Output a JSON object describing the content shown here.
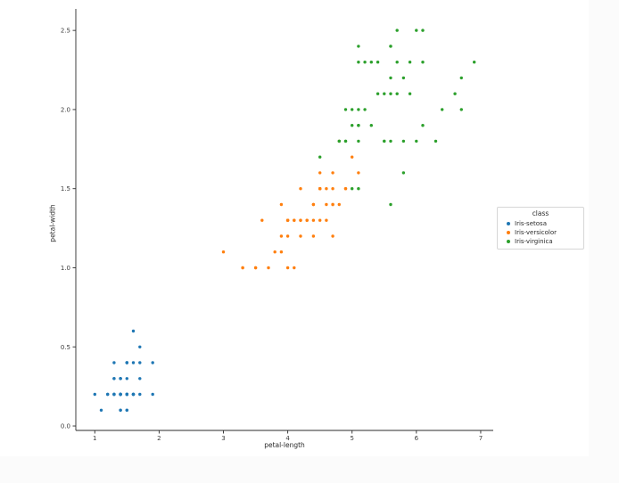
{
  "figure": {
    "background": "#ffffff",
    "page_background": "#fbfbfb",
    "axis_color": "#2b2b2b",
    "tick_label_color": "#3b3b3b"
  },
  "chart_data": {
    "type": "scatter",
    "title": "",
    "xlabel": "petal-length",
    "ylabel": "petal-width",
    "xlim": [
      0.705,
      7.195
    ],
    "ylim": [
      -0.028,
      2.636
    ],
    "xticks": [
      1,
      2,
      3,
      4,
      5,
      6,
      7
    ],
    "xtick_labels": [
      "1",
      "2",
      "3",
      "4",
      "5",
      "6",
      "7"
    ],
    "yticks": [
      0.0,
      0.5,
      1.0,
      1.5,
      2.0,
      2.5
    ],
    "ytick_labels": [
      "0.0",
      "0.5",
      "1.0",
      "1.5",
      "2.0",
      "2.5"
    ],
    "grid": false,
    "legend": {
      "title": "class",
      "position": "right-outside",
      "entries": [
        "Iris-setosa",
        "Iris-versicolor",
        "Iris-virginica"
      ]
    },
    "series": [
      {
        "name": "Iris-setosa",
        "color": "#1f77b4",
        "points": [
          [
            1.4,
            0.2
          ],
          [
            1.4,
            0.2
          ],
          [
            1.3,
            0.2
          ],
          [
            1.5,
            0.2
          ],
          [
            1.4,
            0.2
          ],
          [
            1.7,
            0.4
          ],
          [
            1.4,
            0.3
          ],
          [
            1.5,
            0.2
          ],
          [
            1.4,
            0.2
          ],
          [
            1.5,
            0.1
          ],
          [
            1.5,
            0.2
          ],
          [
            1.6,
            0.2
          ],
          [
            1.4,
            0.1
          ],
          [
            1.1,
            0.1
          ],
          [
            1.2,
            0.2
          ],
          [
            1.5,
            0.4
          ],
          [
            1.3,
            0.4
          ],
          [
            1.4,
            0.3
          ],
          [
            1.7,
            0.3
          ],
          [
            1.5,
            0.3
          ],
          [
            1.7,
            0.2
          ],
          [
            1.5,
            0.4
          ],
          [
            1.0,
            0.2
          ],
          [
            1.7,
            0.5
          ],
          [
            1.9,
            0.2
          ],
          [
            1.6,
            0.2
          ],
          [
            1.6,
            0.4
          ],
          [
            1.5,
            0.2
          ],
          [
            1.4,
            0.2
          ],
          [
            1.6,
            0.2
          ],
          [
            1.6,
            0.2
          ],
          [
            1.5,
            0.4
          ],
          [
            1.5,
            0.1
          ],
          [
            1.4,
            0.2
          ],
          [
            1.5,
            0.2
          ],
          [
            1.2,
            0.2
          ],
          [
            1.3,
            0.2
          ],
          [
            1.4,
            0.1
          ],
          [
            1.3,
            0.2
          ],
          [
            1.5,
            0.2
          ],
          [
            1.3,
            0.3
          ],
          [
            1.3,
            0.3
          ],
          [
            1.3,
            0.2
          ],
          [
            1.6,
            0.6
          ],
          [
            1.9,
            0.4
          ],
          [
            1.4,
            0.3
          ],
          [
            1.6,
            0.2
          ],
          [
            1.4,
            0.2
          ],
          [
            1.5,
            0.2
          ],
          [
            1.4,
            0.2
          ]
        ]
      },
      {
        "name": "Iris-versicolor",
        "color": "#ff7f0e",
        "points": [
          [
            4.7,
            1.4
          ],
          [
            4.5,
            1.5
          ],
          [
            4.9,
            1.5
          ],
          [
            4.0,
            1.3
          ],
          [
            4.6,
            1.5
          ],
          [
            4.5,
            1.3
          ],
          [
            4.7,
            1.6
          ],
          [
            3.3,
            1.0
          ],
          [
            4.6,
            1.3
          ],
          [
            3.9,
            1.4
          ],
          [
            3.5,
            1.0
          ],
          [
            4.2,
            1.5
          ],
          [
            4.0,
            1.0
          ],
          [
            4.7,
            1.4
          ],
          [
            3.6,
            1.3
          ],
          [
            4.4,
            1.4
          ],
          [
            4.5,
            1.5
          ],
          [
            4.1,
            1.0
          ],
          [
            4.5,
            1.5
          ],
          [
            3.9,
            1.1
          ],
          [
            4.8,
            1.8
          ],
          [
            4.0,
            1.3
          ],
          [
            4.9,
            1.5
          ],
          [
            4.7,
            1.2
          ],
          [
            4.3,
            1.3
          ],
          [
            4.4,
            1.4
          ],
          [
            4.8,
            1.4
          ],
          [
            5.0,
            1.7
          ],
          [
            4.5,
            1.5
          ],
          [
            3.5,
            1.0
          ],
          [
            3.8,
            1.1
          ],
          [
            3.7,
            1.0
          ],
          [
            3.9,
            1.2
          ],
          [
            5.1,
            1.6
          ],
          [
            4.5,
            1.5
          ],
          [
            4.5,
            1.6
          ],
          [
            4.7,
            1.5
          ],
          [
            4.4,
            1.3
          ],
          [
            4.1,
            1.3
          ],
          [
            4.0,
            1.3
          ],
          [
            4.4,
            1.2
          ],
          [
            4.6,
            1.4
          ],
          [
            4.0,
            1.2
          ],
          [
            3.3,
            1.0
          ],
          [
            4.2,
            1.3
          ],
          [
            4.2,
            1.2
          ],
          [
            4.2,
            1.3
          ],
          [
            4.3,
            1.3
          ],
          [
            3.0,
            1.1
          ],
          [
            4.1,
            1.3
          ]
        ]
      },
      {
        "name": "Iris-virginica",
        "color": "#2ca02c",
        "points": [
          [
            6.0,
            2.5
          ],
          [
            5.1,
            1.9
          ],
          [
            5.9,
            2.1
          ],
          [
            5.6,
            1.8
          ],
          [
            5.8,
            2.2
          ],
          [
            6.6,
            2.1
          ],
          [
            4.5,
            1.7
          ],
          [
            6.3,
            1.8
          ],
          [
            5.8,
            1.8
          ],
          [
            6.1,
            2.5
          ],
          [
            5.1,
            2.0
          ],
          [
            5.3,
            1.9
          ],
          [
            5.5,
            2.1
          ],
          [
            5.0,
            2.0
          ],
          [
            5.1,
            2.4
          ],
          [
            5.3,
            2.3
          ],
          [
            5.5,
            1.8
          ],
          [
            6.7,
            2.2
          ],
          [
            6.9,
            2.3
          ],
          [
            5.0,
            1.5
          ],
          [
            5.7,
            2.3
          ],
          [
            4.9,
            2.0
          ],
          [
            6.7,
            2.0
          ],
          [
            4.9,
            1.8
          ],
          [
            5.7,
            2.1
          ],
          [
            6.0,
            1.8
          ],
          [
            4.8,
            1.8
          ],
          [
            4.9,
            1.8
          ],
          [
            5.6,
            2.1
          ],
          [
            5.8,
            1.6
          ],
          [
            6.1,
            1.9
          ],
          [
            6.4,
            2.0
          ],
          [
            5.6,
            2.2
          ],
          [
            5.1,
            1.5
          ],
          [
            5.6,
            1.4
          ],
          [
            6.1,
            2.3
          ],
          [
            5.6,
            2.4
          ],
          [
            5.5,
            1.8
          ],
          [
            4.8,
            1.8
          ],
          [
            5.4,
            2.1
          ],
          [
            5.6,
            2.4
          ],
          [
            5.1,
            2.3
          ],
          [
            5.1,
            1.9
          ],
          [
            5.9,
            2.3
          ],
          [
            5.7,
            2.5
          ],
          [
            5.2,
            2.3
          ],
          [
            5.0,
            1.9
          ],
          [
            5.2,
            2.0
          ],
          [
            5.4,
            2.3
          ],
          [
            5.1,
            1.8
          ]
        ]
      }
    ]
  }
}
